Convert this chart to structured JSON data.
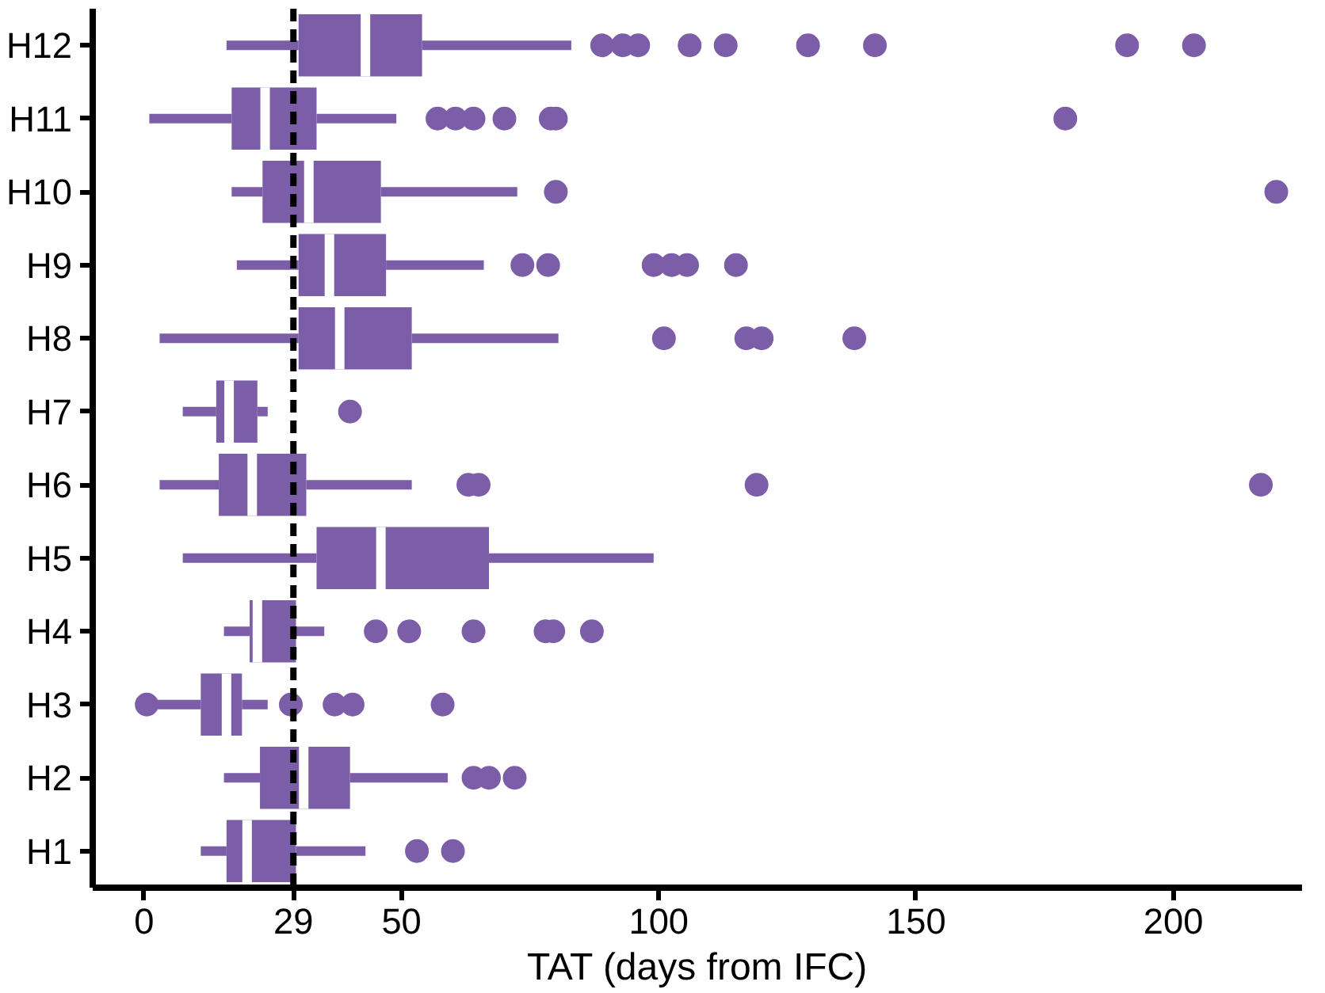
{
  "chart_data": {
    "type": "box",
    "orientation": "horizontal",
    "xlabel": "TAT (days from IFC)",
    "categories": [
      "H12",
      "H11",
      "H10",
      "H9",
      "H8",
      "H7",
      "H6",
      "H5",
      "H4",
      "H3",
      "H2",
      "H1"
    ],
    "xlim": [
      -10,
      225
    ],
    "xticks": [
      0,
      29,
      50,
      100,
      150,
      200
    ],
    "grid": false,
    "ref_lines": [
      {
        "axis": "x",
        "value": 29,
        "color": "#000000",
        "line_style": "dashed"
      }
    ],
    "series": [
      {
        "color": "#7b5ea7",
        "boxes": [
          {
            "low": 16,
            "q1": 30,
            "median": 43,
            "q3": 54,
            "high": 83,
            "outliers": [
              89,
              93,
              96,
              106,
              113,
              129,
              142,
              191,
              204
            ]
          },
          {
            "low": 1,
            "q1": 17,
            "median": 23.5,
            "q3": 33.5,
            "high": 49,
            "outliers": [
              57,
              60.5,
              64,
              70,
              79,
              80,
              179
            ]
          },
          {
            "low": 17,
            "q1": 23,
            "median": 32,
            "q3": 46,
            "high": 72.5,
            "outliers": [
              80,
              220
            ]
          },
          {
            "low": 18,
            "q1": 30,
            "median": 36,
            "q3": 47,
            "high": 66,
            "outliers": [
              73.5,
              78.5,
              99,
              102.5,
              105.5,
              115
            ]
          },
          {
            "low": 3,
            "q1": 30,
            "median": 38,
            "q3": 52,
            "high": 80.5,
            "outliers": [
              101,
              117,
              120,
              138
            ]
          },
          {
            "low": 7.5,
            "q1": 14,
            "median": 16.5,
            "q3": 22,
            "high": 24,
            "outliers": [
              40
            ]
          },
          {
            "low": 3,
            "q1": 14.5,
            "median": 21,
            "q3": 31.5,
            "high": 52,
            "outliers": [
              63,
              65,
              119,
              217
            ]
          },
          {
            "low": 7.5,
            "q1": 33.5,
            "median": 46,
            "q3": 67,
            "high": 99
          },
          {
            "low": 15.5,
            "q1": 20.5,
            "median": 22,
            "q3": 29.5,
            "high": 35,
            "outliers": [
              45,
              51.5,
              64,
              78,
              79.5,
              87
            ]
          },
          {
            "low": 1,
            "q1": 11,
            "median": 16,
            "q3": 19,
            "high": 24,
            "outliers": [
              0.5,
              28.5,
              37,
              40.5,
              58
            ]
          },
          {
            "low": 15.5,
            "q1": 22.5,
            "median": 31,
            "q3": 40,
            "high": 59,
            "outliers": [
              64,
              67,
              72
            ]
          },
          {
            "low": 11,
            "q1": 16,
            "median": 20,
            "q3": 29.5,
            "high": 43,
            "outliers": [
              53,
              60
            ]
          }
        ]
      }
    ]
  }
}
